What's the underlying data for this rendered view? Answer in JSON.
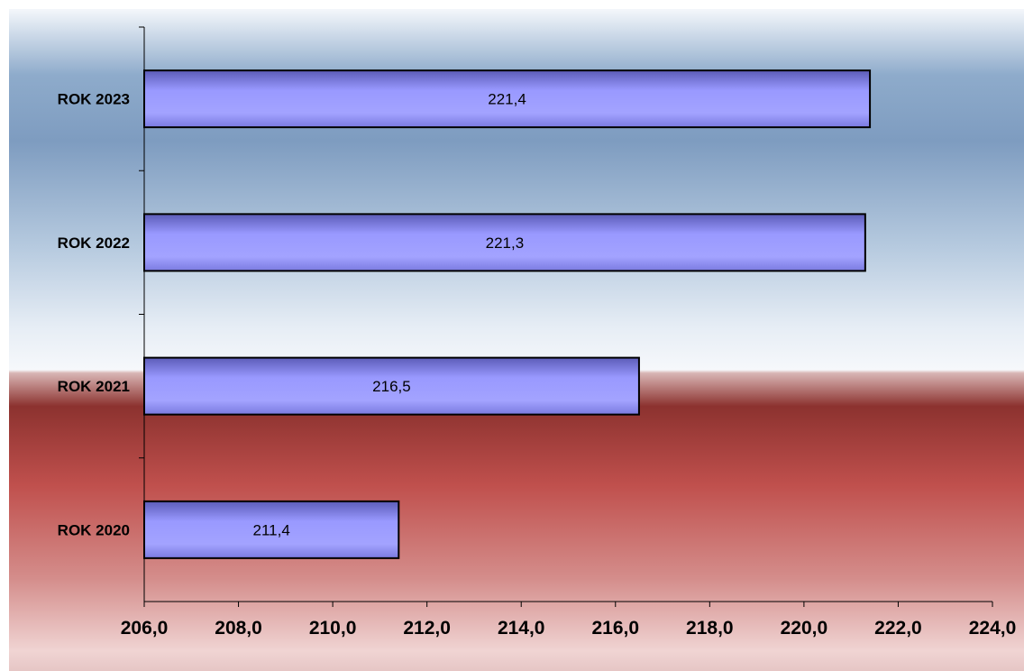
{
  "chart_data": {
    "type": "bar",
    "orientation": "horizontal",
    "categories": [
      "ROK 2023",
      "ROK 2022",
      "ROK 2021",
      "ROK 2020"
    ],
    "values": [
      221.4,
      221.3,
      216.5,
      211.4
    ],
    "data_labels": [
      "221,4",
      "221,3",
      "216,5",
      "211,4"
    ],
    "xlim": [
      206,
      224
    ],
    "x_ticks": [
      "206,0",
      "208,0",
      "210,0",
      "212,0",
      "214,0",
      "216,0",
      "218,0",
      "220,0",
      "222,0",
      "224,0"
    ],
    "title": "",
    "xlabel": "",
    "ylabel": "",
    "grid": false,
    "legend": "none",
    "colors": {
      "bar_fill": "#9999ff",
      "bar_edge": "#000000",
      "bg_top": "#7e9cc0",
      "bg_mid": "#f2f5f9",
      "bg_bottom": "#c0504d"
    }
  }
}
